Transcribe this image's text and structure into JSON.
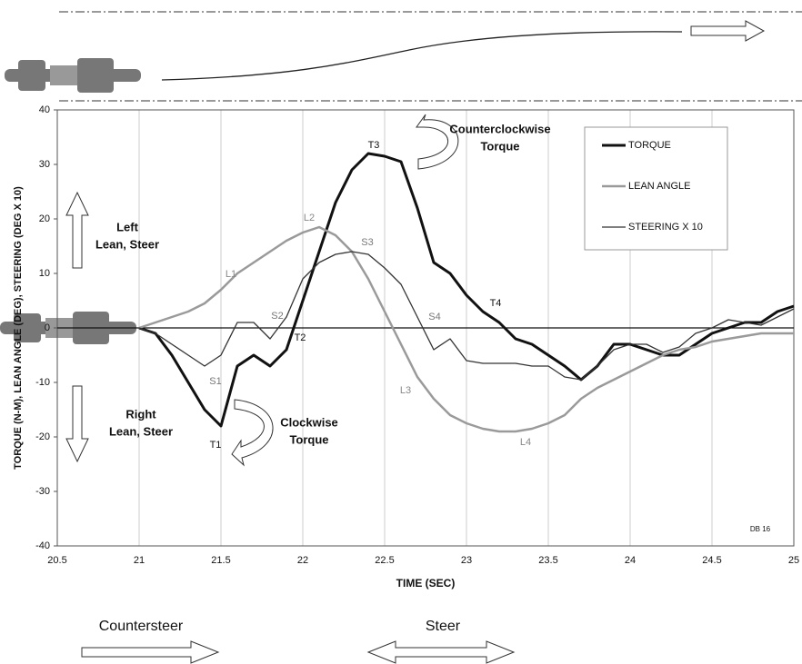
{
  "chart_data": {
    "type": "line",
    "x_label": "TIME (SEC)",
    "y_label": "TORQUE (N-M), LEAN ANGLE (DEG), STEERING (DEG X 10)",
    "x": [
      21,
      21.1,
      21.2,
      21.3,
      21.4,
      21.5,
      21.6,
      21.7,
      21.8,
      21.9,
      22,
      22.1,
      22.2,
      22.3,
      22.4,
      22.5,
      22.6,
      22.7,
      22.8,
      22.9,
      23,
      23.1,
      23.2,
      23.3,
      23.4,
      23.5,
      23.6,
      23.7,
      23.8,
      23.9,
      24,
      24.1,
      24.2,
      24.3,
      24.4,
      24.5,
      24.6,
      24.7,
      24.8,
      24.9,
      25
    ],
    "series": [
      {
        "name": "TORQUE",
        "color": "#111111",
        "width": 3,
        "values": [
          0,
          -1,
          -5,
          -10,
          -15,
          -18,
          -7,
          -5,
          -7,
          -4,
          5,
          14,
          23,
          29,
          32,
          31.5,
          30.5,
          22,
          12,
          10,
          6,
          3,
          1,
          -2,
          -3,
          -5,
          -7,
          -9.5,
          -7,
          -3,
          -3,
          -4,
          -5,
          -5,
          -3,
          -1,
          0,
          1,
          1,
          3,
          4
        ]
      },
      {
        "name": "LEAN ANGLE",
        "color": "#9a9a9a",
        "width": 2.5,
        "values": [
          0,
          1,
          2,
          3,
          4.5,
          7,
          10,
          12,
          14,
          16,
          17.5,
          18.5,
          17,
          14,
          9,
          3,
          -3,
          -9,
          -13,
          -16,
          -17.5,
          -18.5,
          -19,
          -19,
          -18.5,
          -17.5,
          -16,
          -13,
          -11,
          -9.5,
          -8,
          -6.5,
          -5,
          -4,
          -3.5,
          -2.5,
          -2,
          -1.5,
          -1,
          -1,
          -1
        ]
      },
      {
        "name": "STEERING X 10",
        "color": "#333333",
        "width": 1.3,
        "values": [
          0,
          -1,
          -3,
          -5,
          -7,
          -5,
          1,
          1,
          -2,
          2,
          9,
          12,
          13.5,
          14,
          13.5,
          11,
          8,
          2,
          -4,
          -2,
          -6,
          -6.5,
          -6.5,
          -6.5,
          -7,
          -7,
          -9,
          -9.5,
          -7,
          -4,
          -3,
          -3,
          -4.5,
          -3.5,
          -1,
          0,
          1.5,
          1,
          0.5,
          2,
          3.5
        ]
      }
    ],
    "xlim": [
      20.5,
      25
    ],
    "xticks": [
      20.5,
      21,
      21.5,
      22,
      22.5,
      23,
      23.5,
      24,
      24.5,
      25
    ],
    "ylim": [
      -40,
      40
    ],
    "yticks": [
      -40,
      -30,
      -20,
      -10,
      0,
      10,
      20,
      30,
      40
    ],
    "grid": true,
    "legend": "top-right",
    "point_labels": [
      "T1",
      "T2",
      "T3",
      "T4",
      "L1",
      "L2",
      "L3",
      "L4",
      "S1",
      "S2",
      "S3",
      "S4",
      "DB 16"
    ],
    "notes": [
      [
        "Counterclockwise",
        "Torque"
      ],
      [
        "Clockwise",
        "Torque"
      ],
      [
        "Left",
        "Lean, Steer"
      ],
      [
        "Right",
        "Lean, Steer"
      ]
    ],
    "phases": [
      "Countersteer",
      "Steer"
    ]
  }
}
